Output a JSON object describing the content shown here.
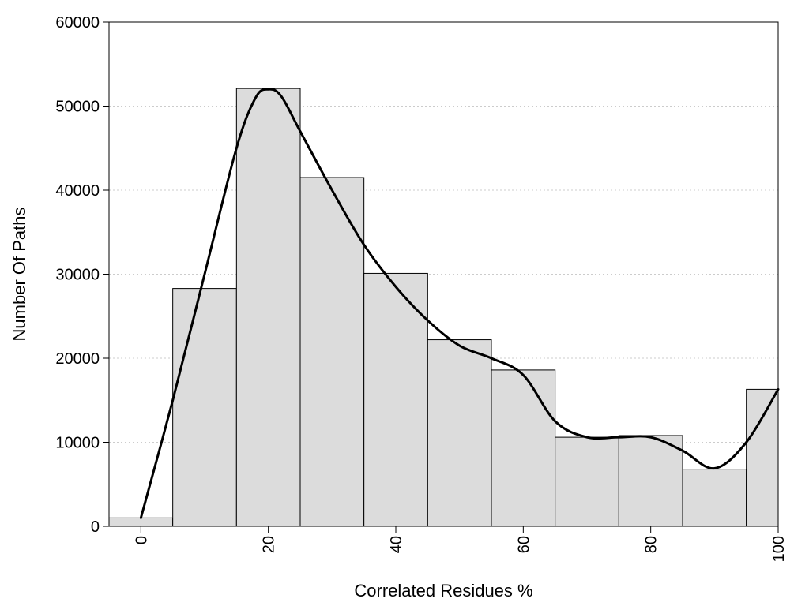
{
  "chart_data": {
    "type": "bar",
    "xlabel": "Correlated Residues %",
    "ylabel": "Number Of Paths",
    "xlim": [
      -5,
      100
    ],
    "ylim": [
      0,
      60000
    ],
    "y_ticks": [
      0,
      10000,
      20000,
      30000,
      40000,
      50000,
      60000
    ],
    "y_tick_labels": [
      "0",
      "10000",
      "20000",
      "30000",
      "40000",
      "50000",
      "60000"
    ],
    "x_ticks": [
      0,
      20,
      40,
      60,
      80,
      100
    ],
    "x_tick_labels": [
      "0",
      "20",
      "40",
      "60",
      "80",
      "100"
    ],
    "bin_width": 10,
    "x": [
      0,
      10,
      20,
      30,
      40,
      50,
      60,
      70,
      80,
      90,
      100
    ],
    "values": [
      1000,
      28300,
      52100,
      41500,
      30100,
      22200,
      18600,
      10600,
      10800,
      6800,
      16300
    ],
    "curve": {
      "x": [
        0,
        5,
        10,
        15,
        18,
        20,
        22,
        25,
        30,
        35,
        40,
        45,
        50,
        55,
        60,
        65,
        70,
        75,
        80,
        85,
        90,
        95,
        100
      ],
      "y": [
        1000,
        15000,
        30000,
        45000,
        51000,
        52000,
        51200,
        47000,
        40000,
        33500,
        28500,
        24500,
        21500,
        20000,
        18000,
        12500,
        10600,
        10600,
        10600,
        9000,
        6900,
        10000,
        16300
      ]
    },
    "grid": "horizontal dotted",
    "colors": {
      "bar_fill": "#dcdcdc",
      "bar_stroke": "#000000",
      "curve": "#000000",
      "grid": "#cccccc"
    }
  }
}
